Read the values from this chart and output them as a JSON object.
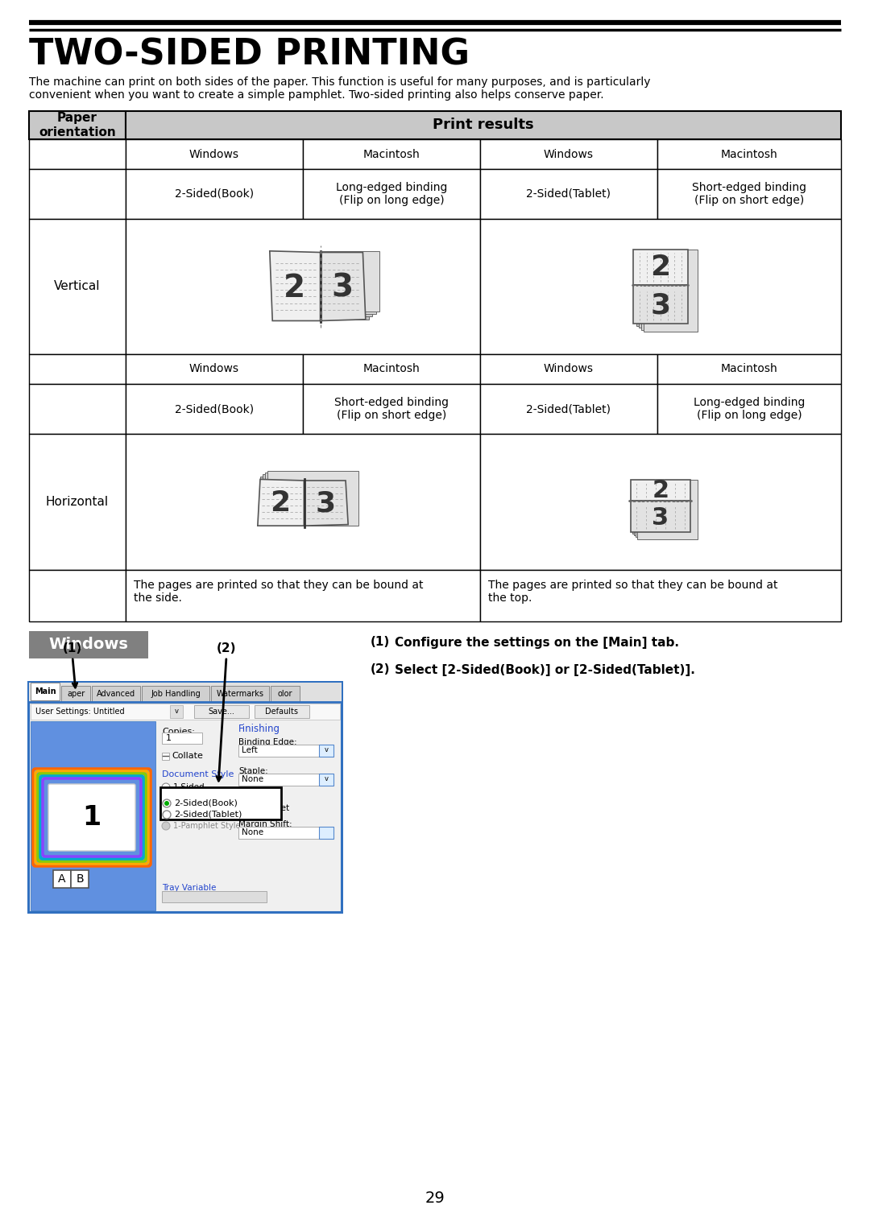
{
  "title": "TWO-SIDED PRINTING",
  "desc1": "The machine can print on both sides of the paper. This function is useful for many purposes, and is particularly",
  "desc2": "convenient when you want to create a simple pamphlet. Two-sided printing also helps conserve paper.",
  "table_header": "Print results",
  "col1_header": "Paper\norientation",
  "vert_win_label": "2-Sided(Book)",
  "vert_mac_label": "Long-edged binding\n(Flip on long edge)",
  "vert_win2_label": "2-Sided(Tablet)",
  "vert_mac2_label": "Short-edged binding\n(Flip on short edge)",
  "horiz_win_label": "2-Sided(Book)",
  "horiz_mac_label": "Short-edged binding\n(Flip on short edge)",
  "horiz_win2_label": "2-Sided(Tablet)",
  "horiz_mac2_label": "Long-edged binding\n(Flip on long edge)",
  "footer_left": "The pages are printed so that they can be bound at\nthe side.",
  "footer_right": "The pages are printed so that they can be bound at\nthe top.",
  "windows_label": "Windows",
  "step1_num": "(1)",
  "step1_text": "Configure the settings on the [Main] tab.",
  "step2_num": "(2)",
  "step2_text": "Select [2-Sided(Book)] or [2-Sided(Tablet)].",
  "page_number": "29",
  "bg_color": "#ffffff",
  "hdr_bg": "#c8c8c8",
  "border_color": "#000000",
  "win_btn_bg": "#808080",
  "win_btn_fg": "#ffffff"
}
